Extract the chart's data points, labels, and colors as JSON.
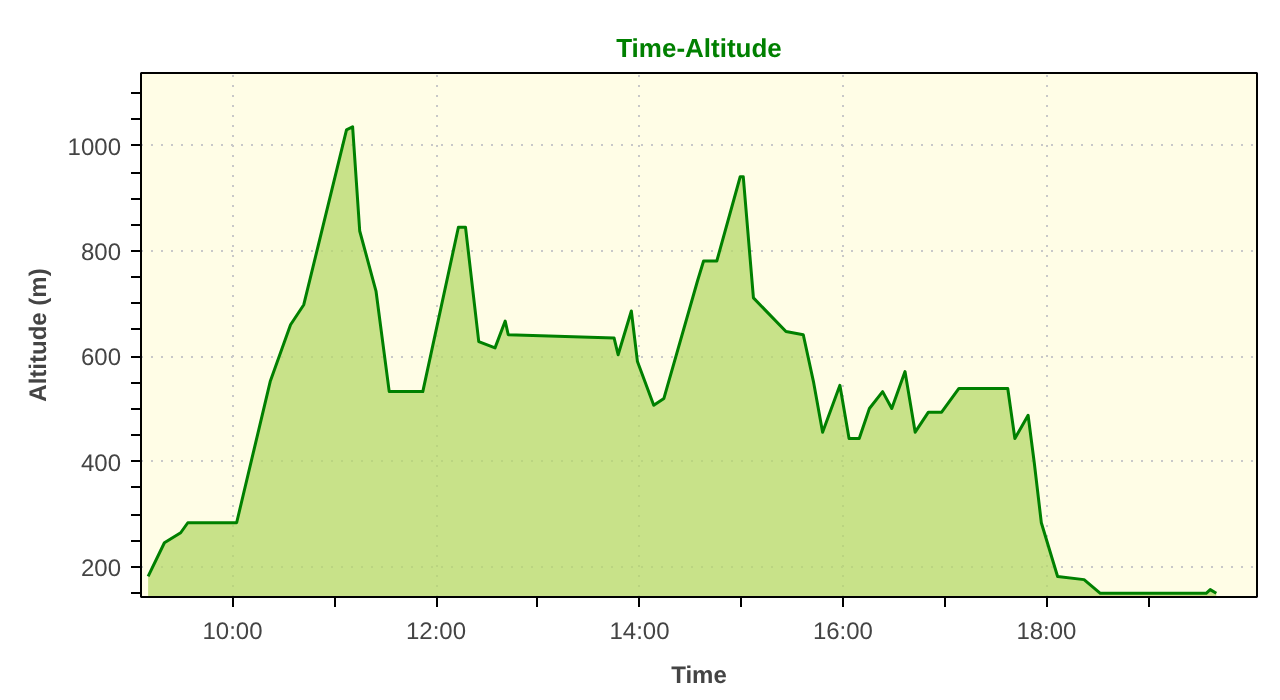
{
  "chart_data": {
    "type": "area",
    "title": "Time-Altitude",
    "xlabel": "Time",
    "ylabel": "Altitude (m)",
    "x": [
      9.17,
      9.33,
      9.49,
      9.56,
      10.04,
      10.37,
      10.57,
      10.7,
      11.12,
      11.18,
      11.25,
      11.41,
      11.54,
      11.87,
      12.22,
      12.29,
      12.42,
      12.58,
      12.68,
      12.71,
      13.75,
      13.79,
      13.92,
      13.98,
      14.14,
      14.24,
      14.57,
      14.63,
      14.76,
      14.99,
      15.02,
      15.12,
      15.44,
      15.61,
      15.71,
      15.8,
      15.97,
      16.06,
      16.16,
      16.26,
      16.39,
      16.48,
      16.61,
      16.71,
      16.84,
      16.97,
      17.14,
      17.49,
      17.62,
      17.69,
      17.82,
      17.88,
      17.95,
      18.11,
      18.37,
      18.53,
      19.57,
      19.61,
      19.67
    ],
    "values": [
      182,
      246,
      265,
      284,
      284,
      552,
      660,
      698,
      1030,
      1036,
      838,
      724,
      533,
      533,
      845,
      845,
      628,
      616,
      667,
      641,
      635,
      603,
      686,
      590,
      507,
      520,
      743,
      781,
      781,
      941,
      941,
      711,
      647,
      641,
      552,
      456,
      545,
      444,
      444,
      501,
      533,
      501,
      571,
      456,
      494,
      494,
      539,
      539,
      539,
      444,
      488,
      399,
      284,
      182,
      176,
      150,
      150,
      157,
      150
    ],
    "color": "#008000",
    "xlim": [
      9.1,
      20.07
    ],
    "ylim": [
      143,
      1138
    ],
    "xticks": [
      {
        "value": 10,
        "label": "10:00"
      },
      {
        "value": 11,
        "label": null
      },
      {
        "value": 12,
        "label": "12:00"
      },
      {
        "value": 13,
        "label": null
      },
      {
        "value": 14,
        "label": "14:00"
      },
      {
        "value": 15,
        "label": null
      },
      {
        "value": 16,
        "label": "16:00"
      },
      {
        "value": 17,
        "label": null
      },
      {
        "value": 18,
        "label": "18:00"
      },
      {
        "value": 19,
        "label": null
      }
    ],
    "yticks": [
      {
        "value": 150,
        "label": null
      },
      200,
      {
        "value": 250,
        "label": null
      },
      {
        "value": 300,
        "label": null
      },
      {
        "value": 350,
        "label": null
      },
      400,
      {
        "value": 450,
        "label": null
      },
      {
        "value": 500,
        "label": null
      },
      {
        "value": 550,
        "label": null
      },
      600,
      {
        "value": 650,
        "label": null
      },
      {
        "value": 700,
        "label": null
      },
      {
        "value": 750,
        "label": null
      },
      800,
      {
        "value": 850,
        "label": null
      },
      {
        "value": 900,
        "label": null
      },
      {
        "value": 950,
        "label": null
      },
      1000,
      {
        "value": 1050,
        "label": null
      },
      {
        "value": 1100,
        "label": null
      }
    ],
    "grid": true
  }
}
